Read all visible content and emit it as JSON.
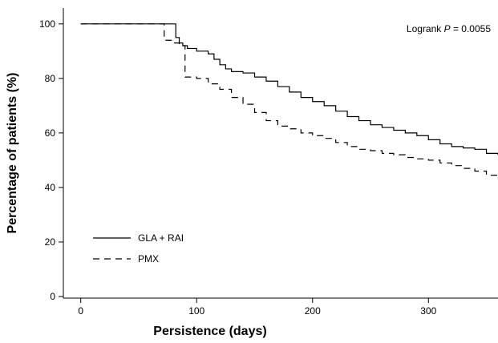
{
  "chart_data": {
    "type": "line",
    "subtype": "kaplan-meier step",
    "xlabel": "Persistence (days)",
    "ylabel": "Percentage of patients (%)",
    "xlim": [
      -15,
      360
    ],
    "ylim": [
      0,
      102
    ],
    "xticks": [
      0,
      100,
      200,
      300
    ],
    "yticks": [
      0,
      20,
      40,
      60,
      80,
      100
    ],
    "annotation": {
      "prefix": "Logrank ",
      "italic": "P",
      "suffix": " = 0.0055"
    },
    "legend_position": "lower-left",
    "grid": false,
    "series": [
      {
        "name": "GLA + RAI",
        "line_style": "solid",
        "x": [
          0,
          80,
          82,
          85,
          88,
          92,
          100,
          110,
          115,
          120,
          125,
          130,
          140,
          150,
          160,
          170,
          180,
          190,
          200,
          210,
          220,
          230,
          240,
          250,
          260,
          270,
          280,
          290,
          300,
          310,
          320,
          330,
          340,
          350,
          360
        ],
        "y": [
          100,
          100,
          95,
          93,
          92,
          91,
          90,
          89,
          87,
          85,
          83.5,
          82.5,
          82,
          80.5,
          79,
          77,
          75,
          73,
          71.5,
          70,
          68,
          66,
          64.5,
          63,
          62,
          61,
          60,
          59,
          57.5,
          56,
          55,
          54.5,
          54,
          52.5,
          52
        ]
      },
      {
        "name": "PMX",
        "line_style": "dashed",
        "x": [
          0,
          70,
          72,
          80,
          85,
          90,
          100,
          110,
          120,
          130,
          140,
          150,
          160,
          170,
          180,
          190,
          200,
          210,
          220,
          230,
          240,
          250,
          260,
          270,
          280,
          290,
          300,
          310,
          320,
          330,
          340,
          350,
          360
        ],
        "y": [
          100,
          100,
          94,
          93,
          92,
          80.5,
          80,
          78,
          76,
          73,
          70.5,
          67.5,
          64.5,
          62.5,
          61.5,
          60,
          59,
          58,
          56.5,
          55,
          54,
          53.5,
          52.5,
          52,
          51,
          50.5,
          50,
          49,
          48,
          47,
          46,
          44.5,
          43
        ]
      }
    ],
    "colors": {
      "line": "#000000",
      "background": "#ffffff"
    }
  }
}
